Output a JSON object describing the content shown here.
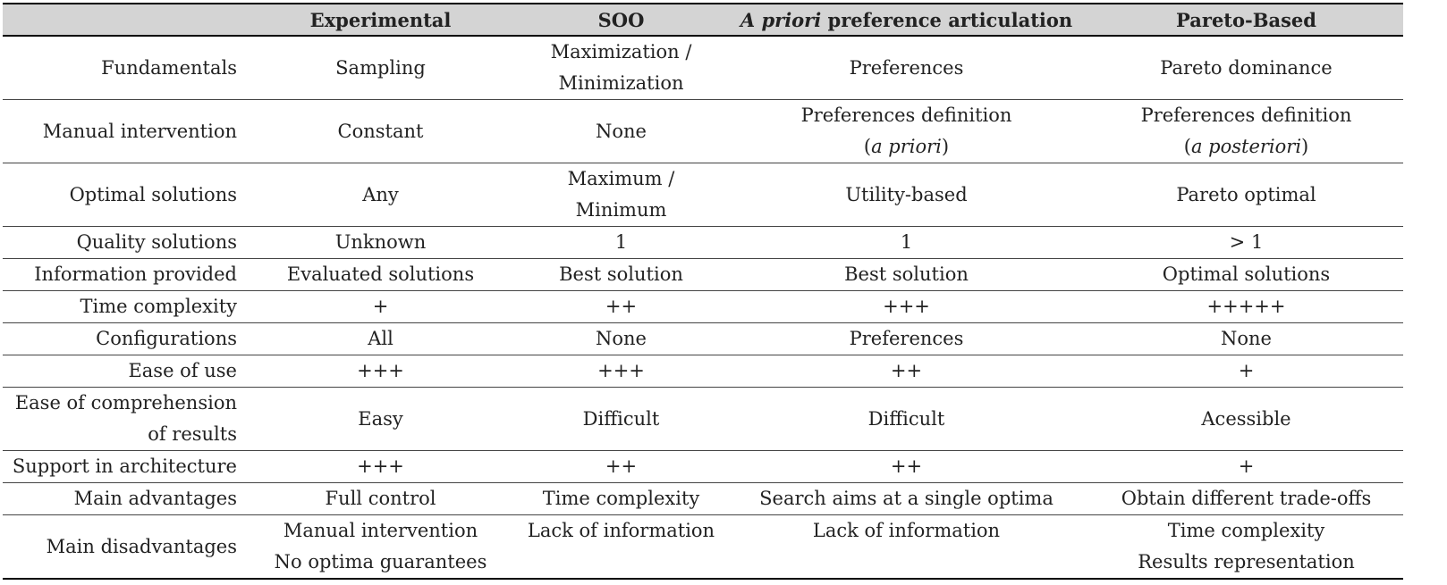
{
  "headers": {
    "corner": "",
    "experimental": "Experimental",
    "soo": "SOO",
    "apriori_em": "A priori",
    "apriori_rest": " preference articulation",
    "pareto": "Pareto-Based"
  },
  "rows": [
    {
      "label": [
        "Fundamentals"
      ],
      "experimental": [
        "Sampling"
      ],
      "soo": [
        "Maximization /",
        "Minimization"
      ],
      "apriori": [
        "Preferences"
      ],
      "pareto": [
        "Pareto dominance"
      ]
    },
    {
      "label": [
        "Manual intervention"
      ],
      "experimental": [
        "Constant"
      ],
      "soo": [
        "None"
      ],
      "apriori": [
        "Preferences definition",
        "(a priori)"
      ],
      "pareto": [
        "Preferences definition",
        "(a posteriori)"
      ]
    },
    {
      "label": [
        "Optimal solutions"
      ],
      "experimental": [
        "Any"
      ],
      "soo": [
        "Maximum /",
        "Minimum"
      ],
      "apriori": [
        "Utility-based"
      ],
      "pareto": [
        "Pareto optimal"
      ]
    },
    {
      "label": [
        "Quality solutions"
      ],
      "experimental": [
        "Unknown"
      ],
      "soo": [
        "1"
      ],
      "apriori": [
        "1"
      ],
      "pareto": [
        "> 1"
      ]
    },
    {
      "label": [
        "Information provided"
      ],
      "experimental": [
        "Evaluated solutions"
      ],
      "soo": [
        "Best solution"
      ],
      "apriori": [
        "Best solution"
      ],
      "pareto": [
        "Optimal solutions"
      ]
    },
    {
      "label": [
        "Time complexity"
      ],
      "experimental": [
        "+"
      ],
      "soo": [
        "++"
      ],
      "apriori": [
        "+++"
      ],
      "pareto": [
        "+++++"
      ]
    },
    {
      "label": [
        "Configurations"
      ],
      "experimental": [
        "All"
      ],
      "soo": [
        "None"
      ],
      "apriori": [
        "Preferences"
      ],
      "pareto": [
        "None"
      ]
    },
    {
      "label": [
        "Ease of use"
      ],
      "experimental": [
        "+++"
      ],
      "soo": [
        "+++"
      ],
      "apriori": [
        "++"
      ],
      "pareto": [
        "+"
      ]
    },
    {
      "label": [
        "Ease of comprehension",
        "of results"
      ],
      "experimental": [
        "Easy"
      ],
      "soo": [
        "Difficult"
      ],
      "apriori": [
        "Difficult"
      ],
      "pareto": [
        "Acessible"
      ]
    },
    {
      "label": [
        "Support in architecture"
      ],
      "experimental": [
        "+++"
      ],
      "soo": [
        "++"
      ],
      "apriori": [
        "++"
      ],
      "pareto": [
        "+"
      ]
    },
    {
      "label": [
        "Main advantages"
      ],
      "experimental": [
        "Full control"
      ],
      "soo": [
        "Time complexity"
      ],
      "apriori": [
        "Search aims at a single optima"
      ],
      "pareto": [
        "Obtain different trade-offs"
      ]
    },
    {
      "label": [
        "Main disadvantages"
      ],
      "experimental": [
        "Manual intervention",
        "No optima guarantees"
      ],
      "soo": [
        "Lack of information"
      ],
      "apriori": [
        "Lack of information"
      ],
      "pareto": [
        "Time complexity",
        "Results representation"
      ]
    }
  ]
}
